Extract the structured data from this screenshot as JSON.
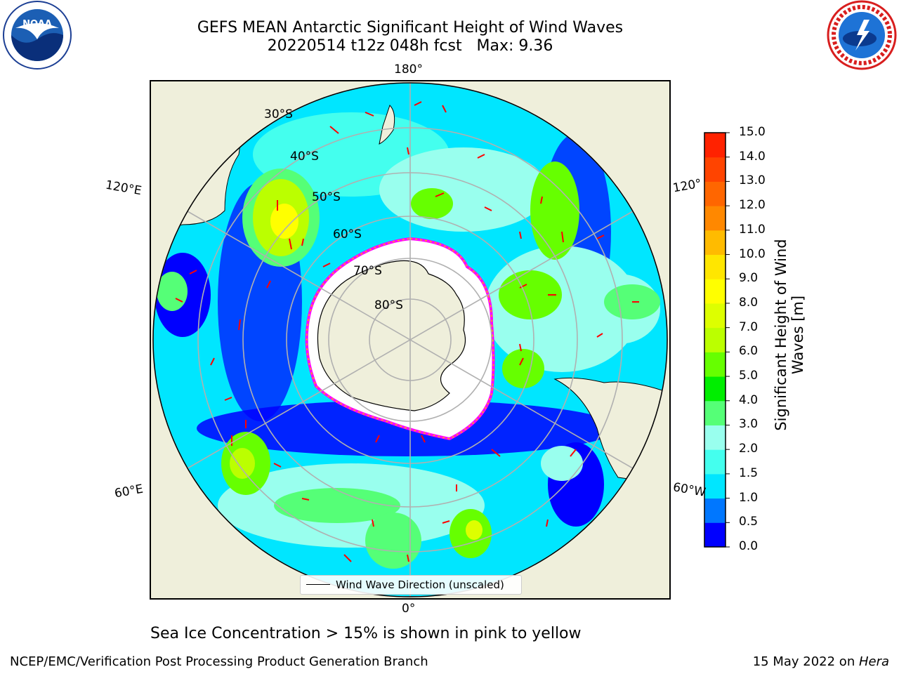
{
  "header": {
    "title_line1": "GEFS MEAN Antarctic Significant Height of Wind Waves",
    "title_line2": "20220514 t12z 048h fcst   Max: 9.36"
  },
  "logos": {
    "left": {
      "text": "NOAA",
      "ring_text": "NATIONAL OCEANIC AND ATMOSPHERIC ADMINISTRATION · U.S. DEPARTMENT OF COMMERCE"
    },
    "right": {
      "ring_text": "NATIONAL WEATHER SERVICE"
    }
  },
  "map": {
    "longitude_labels": {
      "top": "180°",
      "bottom": "0°",
      "upper_left": "120°E",
      "upper_right": "120°",
      "lower_left": "60°E",
      "lower_right": "60°W"
    },
    "latitude_labels": [
      "30°S",
      "40°S",
      "50°S",
      "60°S",
      "70°S",
      "80°S"
    ],
    "legend_label": "Wind Wave Direction (unscaled)",
    "colors": {
      "land": "#efefdb",
      "ocean_low": "#0000ff",
      "ice_edge": "#ff00ff",
      "arrow": "#ff0000",
      "grid": "#b0b0b0"
    }
  },
  "colorbar": {
    "title": "Significant Height of Wind Waves [m]",
    "ticks": [
      "15.0",
      "14.0",
      "13.0",
      "12.0",
      "11.0",
      "10.0",
      "9.0",
      "8.0",
      "7.0",
      "6.0",
      "5.0",
      "4.0",
      "3.0",
      "2.0",
      "1.5",
      "1.0",
      "0.5",
      "0.0"
    ],
    "colors": [
      "#0000ff",
      "#0077ff",
      "#00e6ff",
      "#44ffee",
      "#99ffee",
      "#55ff77",
      "#00ee00",
      "#66ff00",
      "#bbff00",
      "#ddff00",
      "#ffff00",
      "#ffe600",
      "#ffbb00",
      "#ff8800",
      "#ff6600",
      "#ff4400",
      "#ff2200",
      "#ff0000"
    ]
  },
  "caption": "Sea Ice Concentration > 15% is shown in pink to yellow",
  "footer": {
    "left": "NCEP/EMC/Verification Post Processing Product Generation Branch",
    "right_prefix": "15 May 2022 on ",
    "right_host": "Hera"
  }
}
